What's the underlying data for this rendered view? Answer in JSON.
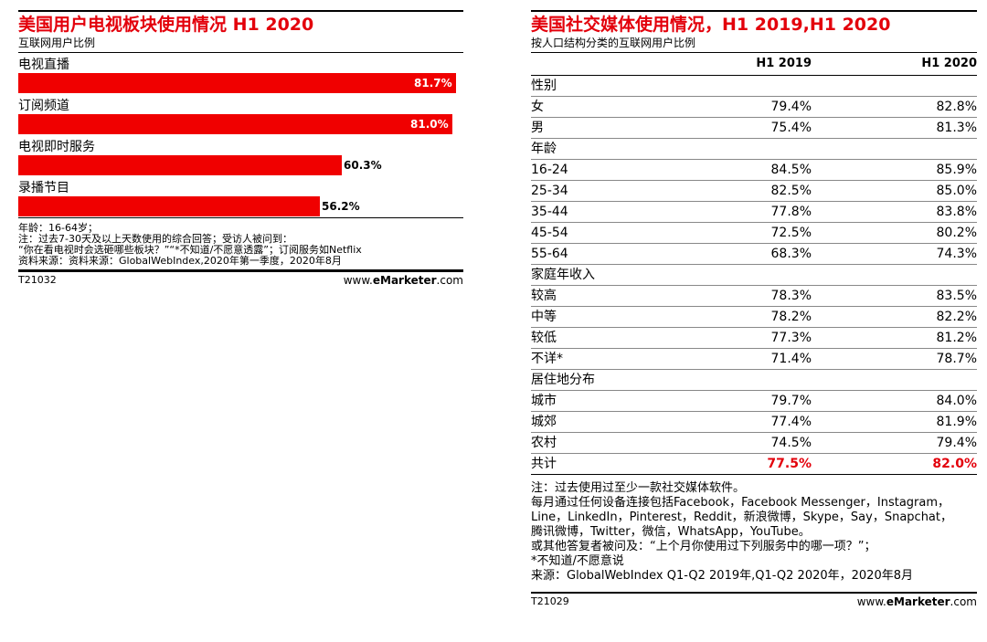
{
  "chart_data": [
    {
      "type": "bar",
      "title": "美国用户电视板块使用情况 H1 2020",
      "subtitle": "互联网用户比例",
      "categories": [
        "电视直播",
        "订阅频道",
        "电视即时服务",
        "录播节目"
      ],
      "values": [
        81.7,
        81.0,
        60.3,
        56.2
      ],
      "value_labels": [
        "81.7%",
        "81.0%",
        "60.3%",
        "56.2%"
      ],
      "unit": "%",
      "xlim": [
        0,
        83
      ],
      "bar_color": "#f00000"
    },
    {
      "type": "table",
      "title": "美国社交媒体使用情况，H1 2019,H1 2020",
      "subtitle": "按人口结构分类的互联网用户比例",
      "columns": [
        "",
        "H1 2019",
        "H1 2020"
      ],
      "rows": [
        {
          "label": "性别",
          "section": true,
          "v2019": "",
          "v2020": ""
        },
        {
          "label": "女",
          "v2019": "79.4%",
          "v2020": "82.8%"
        },
        {
          "label": "男",
          "v2019": "75.4%",
          "v2020": "81.3%"
        },
        {
          "label": "年龄",
          "section": true,
          "v2019": "",
          "v2020": ""
        },
        {
          "label": "16-24",
          "v2019": "84.5%",
          "v2020": "85.9%"
        },
        {
          "label": "25-34",
          "v2019": "82.5%",
          "v2020": "85.0%"
        },
        {
          "label": "35-44",
          "v2019": "77.8%",
          "v2020": "83.8%"
        },
        {
          "label": "45-54",
          "v2019": "72.5%",
          "v2020": "80.2%"
        },
        {
          "label": "55-64",
          "v2019": "68.3%",
          "v2020": "74.3%"
        },
        {
          "label": "家庭年收入",
          "section": true,
          "v2019": "",
          "v2020": ""
        },
        {
          "label": "较高",
          "v2019": "78.3%",
          "v2020": "83.5%"
        },
        {
          "label": "中等",
          "v2019": "78.2%",
          "v2020": "82.2%"
        },
        {
          "label": "较低",
          "v2019": "77.3%",
          "v2020": "81.2%"
        },
        {
          "label": "不详*",
          "v2019": "71.4%",
          "v2020": "78.7%"
        },
        {
          "label": "居住地分布",
          "section": true,
          "v2019": "",
          "v2020": ""
        },
        {
          "label": "城市",
          "v2019": "79.7%",
          "v2020": "84.0%"
        },
        {
          "label": "城郊",
          "v2019": "77.4%",
          "v2020": "81.9%"
        },
        {
          "label": "农村",
          "v2019": "74.5%",
          "v2020": "79.4%"
        },
        {
          "label": "共计",
          "total": true,
          "v2019": "77.5%",
          "v2020": "82.0%"
        }
      ]
    }
  ],
  "left_panel": {
    "notes": [
      "年龄：16-64岁；",
      "注：过去7-30天及以上天数使用的综合回答；受访人被问到：",
      "“你在看电视时会选砸哪些板块？”“*不知道/不愿意透露”；订阅服务如Netflix",
      "资料来源：资料来源：GlobalWebIndex,2020年第一季度，2020年8月"
    ],
    "code": "T21032",
    "brand_prefix": "www.",
    "brand_name": "eMarketer",
    "brand_suffix": ".com"
  },
  "right_panel": {
    "notes": [
      "注：过去使用过至少一款社交媒体软件。",
      "每月通过任何设备连接包括Facebook，Facebook Messenger，Instagram，",
      "Line，LinkedIn，Pinterest，Reddit，新浪微博，Skype，Say，Snapchat，",
      "腾讯微博，Twitter，微信，WhatsApp，YouTube。",
      "或其他答复者被问及：“上个月你使用过下列服务中的哪一项？”；",
      "*不知道/不愿意说",
      "来源：GlobalWebIndex Q1-Q2 2019年,Q1-Q2 2020年，2020年8月"
    ],
    "code": "T21029",
    "brand_prefix": "www.",
    "brand_name": "eMarketer",
    "brand_suffix": ".com"
  },
  "colors": {
    "accent": "#e3000b",
    "bar": "#f00000"
  }
}
